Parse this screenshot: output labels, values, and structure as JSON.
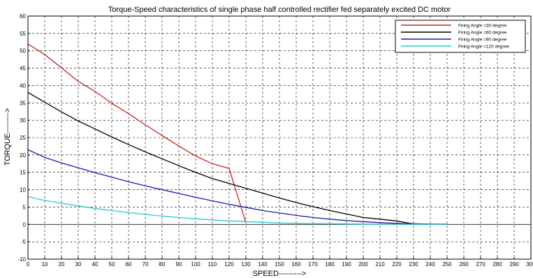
{
  "chart_data": {
    "type": "line",
    "title": "Torque-Speed characteristics of single phase half controlled rectifier fed separately excited DC motor",
    "xlabel": "SPEED--------->",
    "ylabel": "TORQUE-------->",
    "xlim": [
      0,
      300
    ],
    "ylim": [
      -10,
      60
    ],
    "xticks": [
      0,
      10,
      20,
      30,
      40,
      50,
      60,
      70,
      80,
      90,
      100,
      110,
      120,
      130,
      140,
      150,
      160,
      170,
      180,
      190,
      200,
      210,
      220,
      230,
      240,
      250,
      260,
      270,
      280,
      290,
      300
    ],
    "yticks": [
      -10,
      -5,
      0,
      5,
      10,
      15,
      20,
      25,
      30,
      35,
      40,
      45,
      50,
      55,
      60
    ],
    "grid": true,
    "legend_position": "top-right",
    "series": [
      {
        "name": "Firing Angle =30 degree",
        "color": "#cc2222",
        "points": [
          [
            0,
            52
          ],
          [
            10,
            48.9
          ],
          [
            20,
            45.1
          ],
          [
            30,
            41.2
          ],
          [
            40,
            38.3
          ],
          [
            50,
            34.9
          ],
          [
            60,
            31.9
          ],
          [
            70,
            28.7
          ],
          [
            80,
            25.6
          ],
          [
            90,
            22.6
          ],
          [
            100,
            19.7
          ],
          [
            110,
            17.5
          ],
          [
            120,
            16.1
          ],
          [
            130,
            0.5
          ]
        ]
      },
      {
        "name": "Firing Angle =60 degree",
        "color": "#000000",
        "points": [
          [
            0,
            38
          ],
          [
            10,
            35.2
          ],
          [
            20,
            32.4
          ],
          [
            30,
            29.8
          ],
          [
            40,
            27.5
          ],
          [
            50,
            25.2
          ],
          [
            60,
            23.0
          ],
          [
            70,
            20.9
          ],
          [
            80,
            18.9
          ],
          [
            90,
            16.9
          ],
          [
            100,
            15.0
          ],
          [
            110,
            13.2
          ],
          [
            120,
            11.8
          ],
          [
            130,
            10.4
          ],
          [
            140,
            9.0
          ],
          [
            150,
            7.6
          ],
          [
            160,
            6.3
          ],
          [
            170,
            5.1
          ],
          [
            180,
            4.0
          ],
          [
            190,
            3.0
          ],
          [
            200,
            2.0
          ],
          [
            210,
            1.5
          ],
          [
            220,
            1.0
          ],
          [
            228,
            0.3
          ],
          [
            230,
            0.2
          ]
        ]
      },
      {
        "name": "Firing Angle =90 degree",
        "color": "#1a1ab0",
        "points": [
          [
            0,
            21.5
          ],
          [
            10,
            19.3
          ],
          [
            20,
            17.7
          ],
          [
            30,
            16.3
          ],
          [
            40,
            14.9
          ],
          [
            50,
            13.6
          ],
          [
            60,
            12.3
          ],
          [
            70,
            11.1
          ],
          [
            80,
            10.0
          ],
          [
            90,
            8.9
          ],
          [
            100,
            7.8
          ],
          [
            110,
            6.8
          ],
          [
            120,
            5.8
          ],
          [
            130,
            4.9
          ],
          [
            140,
            4.0
          ],
          [
            150,
            3.3
          ],
          [
            160,
            2.6
          ],
          [
            170,
            2.0
          ],
          [
            180,
            1.5
          ],
          [
            190,
            1.1
          ],
          [
            200,
            0.8
          ],
          [
            210,
            0.5
          ],
          [
            220,
            0.3
          ],
          [
            230,
            0.2
          ],
          [
            240,
            0.1
          ],
          [
            250,
            0.1
          ]
        ]
      },
      {
        "name": "Firing Angle =120 degree",
        "color": "#22cccc",
        "points": [
          [
            0,
            8.0
          ],
          [
            10,
            6.9
          ],
          [
            20,
            6.1
          ],
          [
            30,
            5.3
          ],
          [
            40,
            4.6
          ],
          [
            50,
            4.0
          ],
          [
            60,
            3.4
          ],
          [
            70,
            2.9
          ],
          [
            80,
            2.4
          ],
          [
            90,
            2.0
          ],
          [
            100,
            1.6
          ],
          [
            110,
            1.3
          ],
          [
            120,
            1.0
          ],
          [
            130,
            0.8
          ],
          [
            140,
            0.6
          ],
          [
            150,
            0.4
          ],
          [
            160,
            0.3
          ],
          [
            170,
            0.25
          ],
          [
            180,
            0.2
          ],
          [
            190,
            0.15
          ],
          [
            200,
            0.1
          ],
          [
            210,
            0.08
          ],
          [
            220,
            0.06
          ],
          [
            230,
            0.05
          ],
          [
            240,
            0.04
          ],
          [
            250,
            0.03
          ]
        ]
      }
    ]
  }
}
